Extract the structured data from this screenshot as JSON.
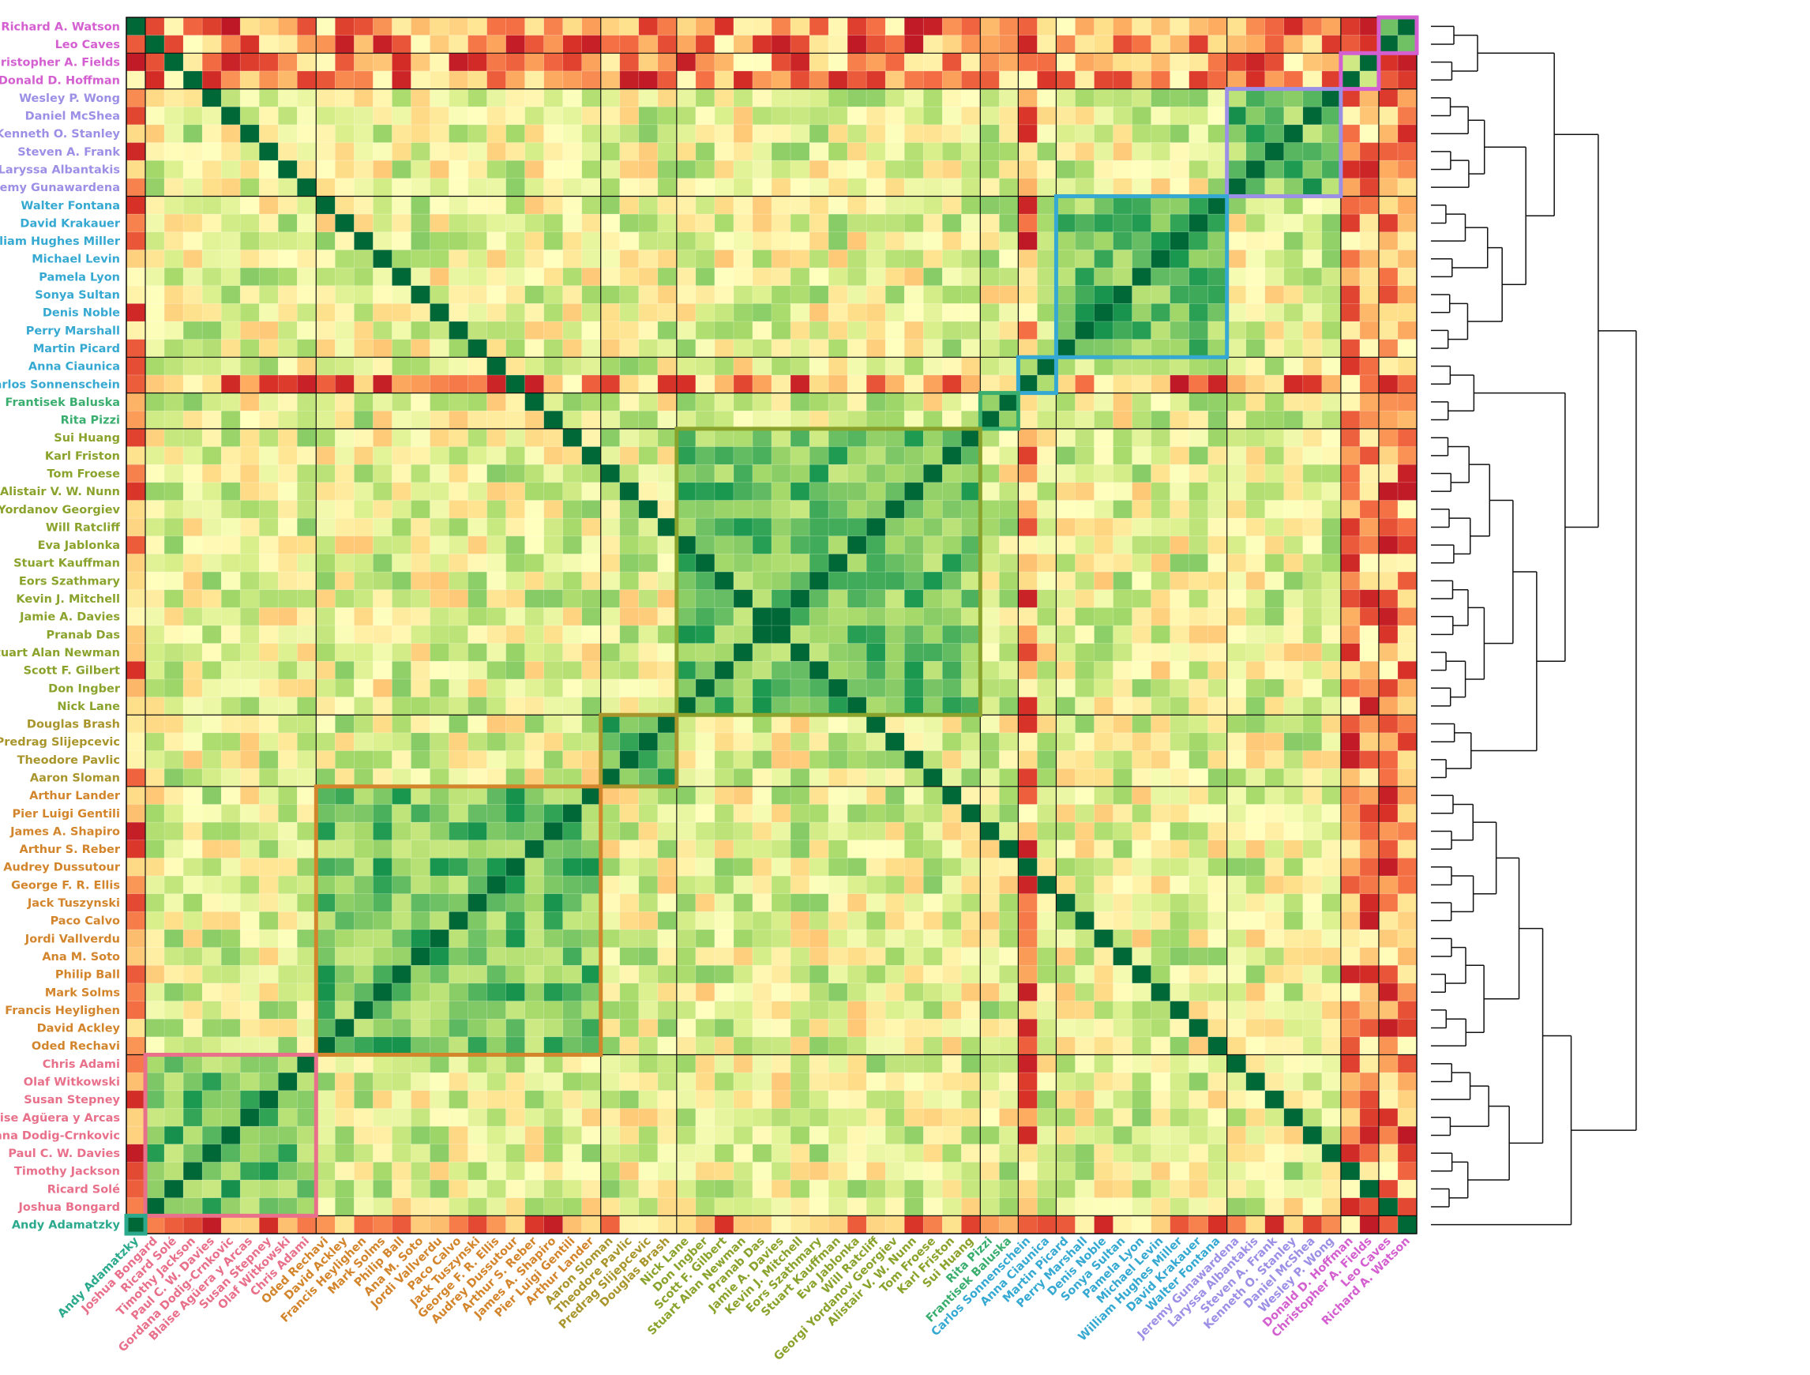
{
  "chart_data": {
    "type": "heatmap",
    "title": "",
    "xlabel": "",
    "ylabel": "",
    "colormap": "RdYlGn",
    "value_scale": "similarity 0 (red) to 1 (dark green)",
    "row_order_top_to_bottom": [
      "Richard A. Watson",
      "Leo Caves",
      "Christopher A. Fields",
      "Donald D. Hoffman",
      "Wesley P. Wong",
      "Daniel McShea",
      "Kenneth O. Stanley",
      "Steven A. Frank",
      "Laryssa Albantakis",
      "Jeremy Gunawardena",
      "Walter Fontana",
      "David Krakauer",
      "William Hughes Miller",
      "Michael Levin",
      "Pamela Lyon",
      "Sonya Sultan",
      "Denis Noble",
      "Perry Marshall",
      "Martin Picard",
      "Anna Ciaunica",
      "Carlos Sonnenschein",
      "Frantisek Baluska",
      "Rita Pizzi",
      "Sui Huang",
      "Karl Friston",
      "Tom Froese",
      "Alistair V. W. Nunn",
      "Georgi Yordanov Georgiev",
      "Will Ratcliff",
      "Eva Jablonka",
      "Stuart Kauffman",
      "Eors Szathmary",
      "Kevin J. Mitchell",
      "Jamie A. Davies",
      "Pranab Das",
      "Stuart Alan Newman",
      "Scott F. Gilbert",
      "Don Ingber",
      "Nick Lane",
      "Douglas Brash",
      "Predrag Slijepcevic",
      "Theodore Pavlic",
      "Aaron Sloman",
      "Arthur Lander",
      "Pier Luigi Gentili",
      "James A. Shapiro",
      "Arthur S. Reber",
      "Audrey Dussutour",
      "George F. R. Ellis",
      "Jack Tuszynski",
      "Paco Calvo",
      "Jordi Vallverdu",
      "Ana M. Soto",
      "Philip Ball",
      "Mark Solms",
      "Francis Heylighen",
      "David Ackley",
      "Oded Rechavi",
      "Chris Adami",
      "Olaf Witkowski",
      "Susan Stepney",
      "Blaise Agüera y Arcas",
      "Gordana Dodig-Crnkovic",
      "Paul C. W. Davies",
      "Timothy Jackson",
      "Ricard Solé",
      "Joshua Bongard",
      "Andy Adamatzky"
    ],
    "column_order_left_to_right": "reverse of row order",
    "clusters": [
      {
        "members": [
          "Richard A. Watson",
          "Leo Caves"
        ],
        "color": "#d45fd0"
      },
      {
        "members": [
          "Christopher A. Fields",
          "Donald D. Hoffman"
        ],
        "color": "#d45fd0"
      },
      {
        "members": [
          "Wesley P. Wong",
          "Daniel McShea",
          "Kenneth O. Stanley",
          "Steven A. Frank",
          "Laryssa Albantakis",
          "Jeremy Gunawardena"
        ],
        "color": "#9c8fe6"
      },
      {
        "members": [
          "Walter Fontana",
          "David Krakauer",
          "William Hughes Miller",
          "Michael Levin",
          "Pamela Lyon",
          "Sonya Sultan",
          "Denis Noble",
          "Perry Marshall",
          "Martin Picard"
        ],
        "color": "#36a9d2"
      },
      {
        "members": [
          "Anna Ciaunica",
          "Carlos Sonnenschein"
        ],
        "color": "#36a9d2"
      },
      {
        "members": [
          "Frantisek Baluska",
          "Rita Pizzi"
        ],
        "color": "#3aae6e"
      },
      {
        "members": [
          "Sui Huang",
          "Karl Friston",
          "Tom Froese",
          "Alistair V. W. Nunn",
          "Georgi Yordanov Georgiev",
          "Will Ratcliff",
          "Eva Jablonka",
          "Stuart Kauffman",
          "Eors Szathmary",
          "Kevin J. Mitchell",
          "Jamie A. Davies",
          "Pranab Das",
          "Stuart Alan Newman",
          "Scott F. Gilbert",
          "Don Ingber",
          "Nick Lane"
        ],
        "color": "#8aa32c"
      },
      {
        "members": [
          "Douglas Brash",
          "Predrag Slijepcevic",
          "Theodore Pavlic",
          "Aaron Sloman"
        ],
        "color": "#a8952c"
      },
      {
        "members": [
          "Arthur Lander",
          "Pier Luigi Gentili",
          "James A. Shapiro",
          "Arthur S. Reber",
          "Audrey Dussutour",
          "George F. R. Ellis",
          "Jack Tuszynski",
          "Paco Calvo",
          "Jordi Vallverdu",
          "Ana M. Soto",
          "Philip Ball",
          "Mark Solms",
          "Francis Heylighen",
          "David Ackley",
          "Oded Rechavi"
        ],
        "color": "#d3852c"
      },
      {
        "members": [
          "Chris Adami",
          "Olaf Witkowski",
          "Susan Stepney",
          "Blaise Agüera y Arcas",
          "Gordana Dodig-Crnkovic",
          "Paul C. W. Davies",
          "Timothy Jackson",
          "Ricard Solé",
          "Joshua Bongard"
        ],
        "color": "#e8708a"
      },
      {
        "members": [
          "Andy Adamatzky"
        ],
        "color": "#2aa98c"
      }
    ],
    "diagonal_value": 1.0,
    "within_cluster_similarity": "high (green)",
    "between_cluster_similarity": "mixed; low (red) for Richard A. Watson, Leo Caves, Christopher A. Fields, Donald D. Hoffman, Carlos Sonnenschein and Andy Adamatzky rows",
    "dendrogram": "hierarchical clustering tree on the right, leaves aligned with rows"
  }
}
